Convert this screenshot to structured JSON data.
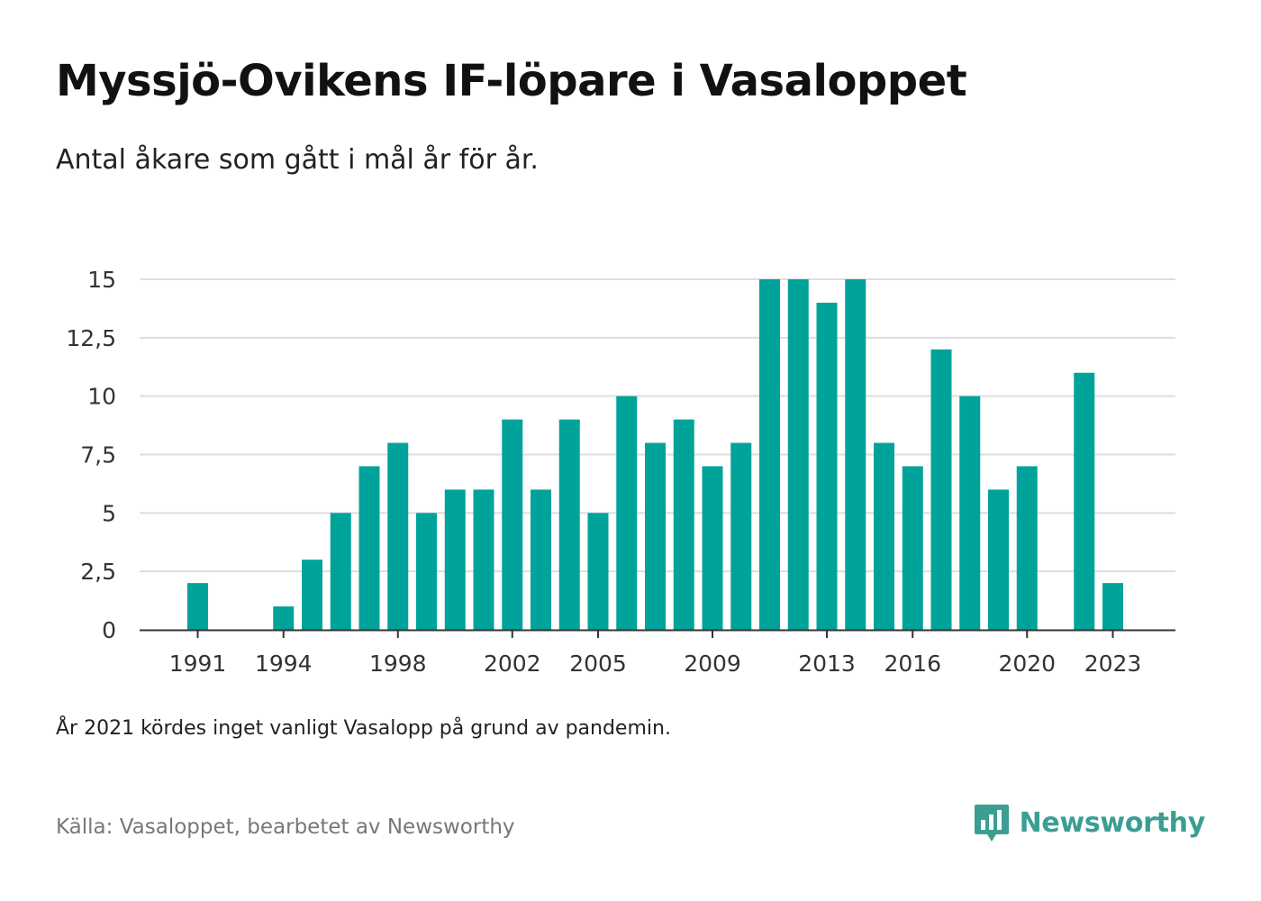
{
  "header": {
    "title": "Myssjö-Ovikens IF-löpare i Vasaloppet",
    "subtitle": "Antal åkare som gått i mål år för år."
  },
  "footer": {
    "note": "År 2021 kördes inget vanligt Vasalopp på grund av pandemin.",
    "source": "Källa: Vasaloppet, bearbetet av Newsworthy",
    "brand": "Newsworthy"
  },
  "colors": {
    "bar": "#00a39a",
    "grid": "#dddddd",
    "axis": "#333333",
    "brand": "#3a9e92"
  },
  "icons": {
    "logo": "newsworthy-logo-icon"
  },
  "chart_data": {
    "type": "bar",
    "x": [
      1991,
      1992,
      1993,
      1994,
      1995,
      1996,
      1997,
      1998,
      1999,
      2000,
      2001,
      2002,
      2003,
      2004,
      2005,
      2006,
      2007,
      2008,
      2009,
      2010,
      2011,
      2012,
      2013,
      2014,
      2015,
      2016,
      2017,
      2018,
      2019,
      2020,
      2021,
      2022,
      2023
    ],
    "values": [
      2,
      0,
      0,
      1,
      3,
      5,
      7,
      8,
      5,
      6,
      6,
      9,
      6,
      9,
      5,
      10,
      8,
      9,
      7,
      8,
      15,
      15,
      14,
      15,
      8,
      7,
      12,
      10,
      6,
      7,
      0,
      11,
      2
    ],
    "xticks": [
      1991,
      1994,
      1998,
      2002,
      2005,
      2009,
      2013,
      2016,
      2020,
      2023
    ],
    "yticks": [
      "0",
      "2,5",
      "5",
      "7,5",
      "10",
      "12,5",
      "15"
    ],
    "ytick_values": [
      0,
      2.5,
      5,
      7.5,
      10,
      12.5,
      15
    ],
    "ylim": [
      0,
      15
    ],
    "xlabel": "",
    "ylabel": "",
    "grid": true,
    "legend": "none"
  }
}
